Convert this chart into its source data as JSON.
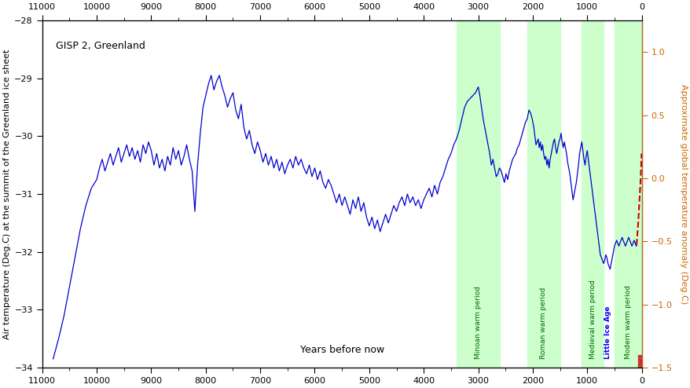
{
  "xlabel": "Years before now",
  "ylabel_left": "Air temperature (Deg.C) at the summit of the Greenland ice sheet",
  "ylabel_right": "Approximate global temperature anomaly (Deg.C)",
  "annotation": "GISP 2, Greenland",
  "xlim": [
    11000,
    0
  ],
  "ylim_left": [
    -34.0,
    -28.0
  ],
  "ylim_right": [
    -1.5,
    1.25
  ],
  "xticks": [
    11000,
    10000,
    9000,
    8000,
    7000,
    6000,
    5000,
    4000,
    3000,
    2000,
    1000,
    0
  ],
  "yticks_left": [
    -34,
    -33,
    -32,
    -31,
    -30,
    -29,
    -28
  ],
  "yticks_right": [
    -1.5,
    -1.0,
    -0.5,
    0.0,
    0.5,
    1.0
  ],
  "green_bands": [
    {
      "xmin": 3400,
      "xmax": 2600,
      "label": "Minoan warm period"
    },
    {
      "xmin": 2100,
      "xmax": 1500,
      "label": "Roman warm period"
    },
    {
      "xmin": 1100,
      "xmax": 700,
      "label": "Medieval warm period"
    },
    {
      "xmin": 500,
      "xmax": 0,
      "label": "Modern warm period"
    }
  ],
  "little_ice_age_label": "Little Ice Age",
  "little_ice_age_x": 620,
  "green_color": "#ccffcc",
  "blue_color": "#0000cc",
  "red_dashed_color": "#cc0000",
  "label_color_green": "#006600",
  "label_color_lia": "#0000ff",
  "axis_color": "#cc6600",
  "background_color": "#ffffff"
}
